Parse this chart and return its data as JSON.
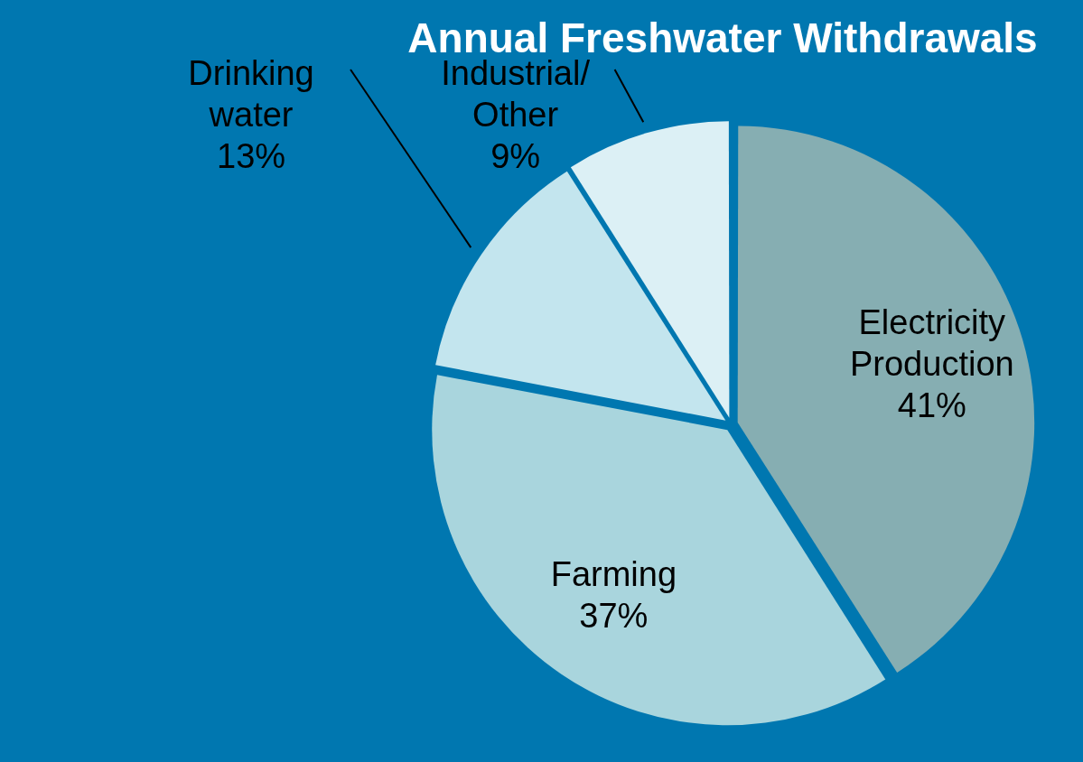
{
  "chart_data": {
    "type": "pie",
    "title": "Annual Freshwater Withdrawals",
    "categories": [
      "Electricity Production",
      "Farming",
      "Drinking water",
      "Industrial/ Other"
    ],
    "values": [
      41,
      37,
      13,
      9
    ],
    "value_labels": [
      "41%",
      "37%",
      "13%",
      "9%"
    ],
    "colors": [
      "#86aeb2",
      "#a9d5dd",
      "#c3e5ee",
      "#dcf0f5"
    ]
  }
}
